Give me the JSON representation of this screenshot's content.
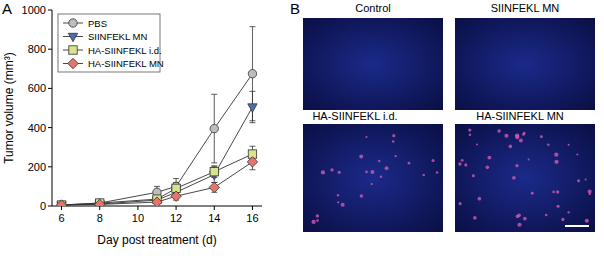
{
  "chart_data": {
    "type": "line",
    "x_label": "Day post treatment (d)",
    "y_label": "Tumor volume (mm³)",
    "x": [
      6,
      8,
      11,
      12,
      14,
      16
    ],
    "series": [
      {
        "name": "PBS",
        "color": "#bdbdbd",
        "marker": "circle",
        "values": [
          5,
          15,
          70,
          100,
          395,
          675
        ],
        "errors": [
          null,
          null,
          30,
          40,
          175,
          240
        ]
      },
      {
        "name": "SIINFEKL MN",
        "color": "#4f6fa8",
        "marker": "triangle-down",
        "values": [
          5,
          10,
          30,
          70,
          160,
          505
        ],
        "errors": [
          null,
          null,
          null,
          30,
          40,
          80
        ]
      },
      {
        "name": "HA-SIINFEKL i.d.",
        "color": "#d9e38c",
        "marker": "square",
        "values": [
          5,
          15,
          35,
          90,
          175,
          265
        ],
        "errors": [
          null,
          null,
          null,
          30,
          30,
          40
        ]
      },
      {
        "name": "HA-SIINFEKL MN",
        "color": "#e9736b",
        "marker": "diamond",
        "values": [
          5,
          8,
          20,
          50,
          95,
          225
        ],
        "errors": [
          null,
          null,
          null,
          20,
          25,
          40
        ]
      }
    ],
    "xlim": [
      5.5,
      16.5
    ],
    "xticks": [
      6,
      8,
      10,
      12,
      14,
      16
    ],
    "ylim": [
      0,
      1000
    ],
    "yticks": [
      0,
      200,
      400,
      600,
      800,
      1000
    ],
    "legend": "upper-left",
    "grid": false
  },
  "panel_labels": [
    "A",
    "B"
  ],
  "images": {
    "labels": [
      "Control",
      "SIINFEKL MN",
      "HA-SIINFEKL i.d.",
      "HA-SIINFEKL MN"
    ]
  }
}
